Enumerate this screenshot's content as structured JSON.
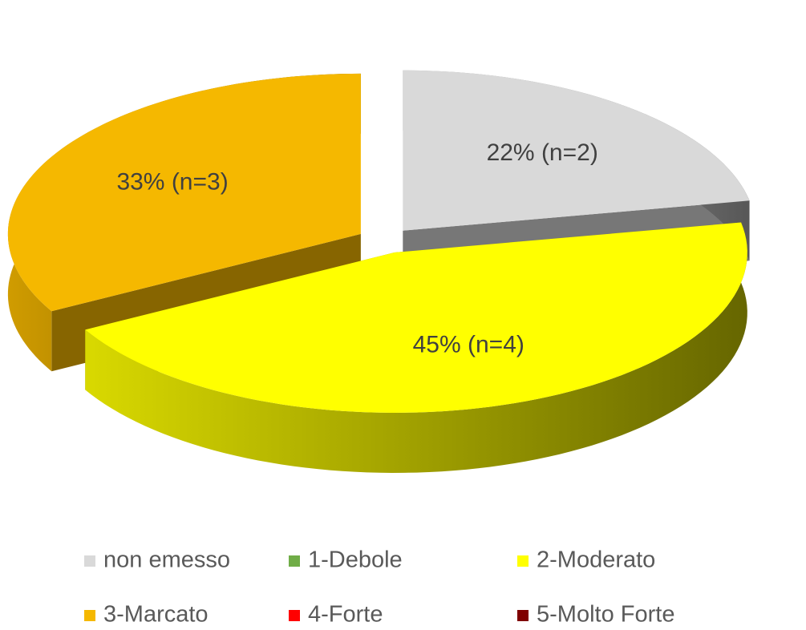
{
  "chart_data": {
    "type": "pie3d",
    "categories": [
      "non emesso",
      "1-Debole",
      "2-Moderato",
      "3-Marcato",
      "4-Forte",
      "5-Molto Forte"
    ],
    "values": [
      22,
      0,
      45,
      33,
      0,
      0
    ],
    "value_labels": [
      "22% (n=2)",
      null,
      "45% (n=4)",
      "33% (n=3)",
      null,
      null
    ],
    "colors": [
      "#d9d9d9",
      "#70ad47",
      "#ffff00",
      "#f5b800",
      "#ff0000",
      "#7f0000"
    ],
    "legend": "bottom"
  }
}
